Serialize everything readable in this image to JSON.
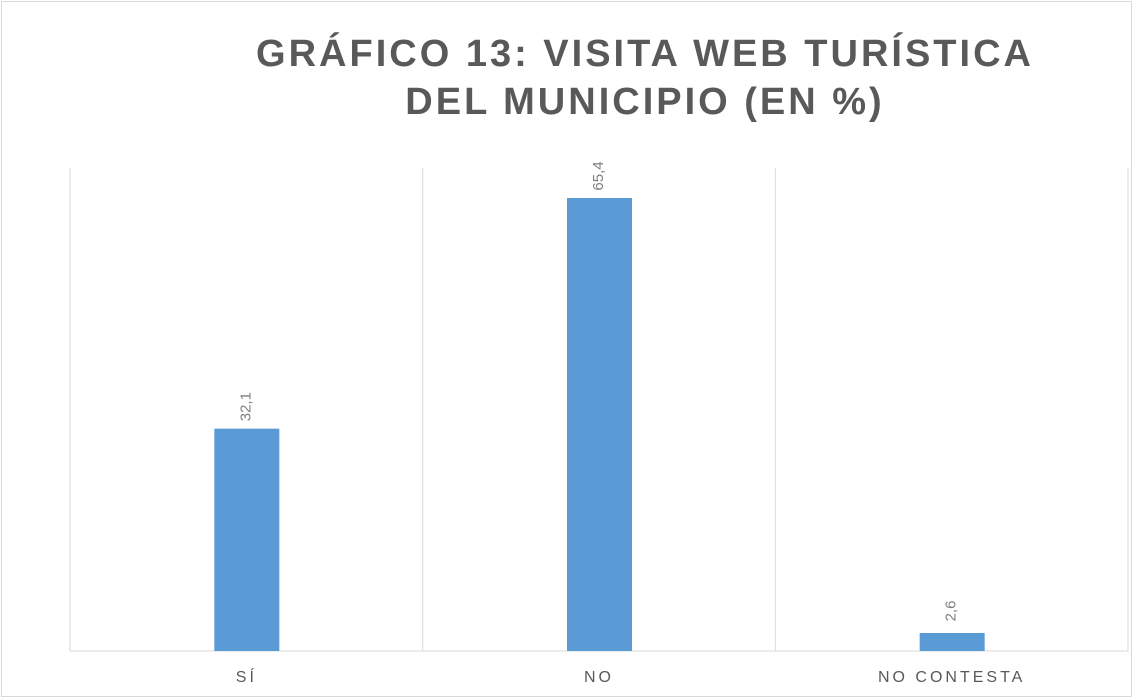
{
  "chart_data": {
    "type": "bar",
    "title": "GRÁFICO 13: VISITA WEB TURÍSTICA DEL MUNICIPIO (EN %)",
    "categories": [
      "SÍ",
      "NO",
      "NO CONTESTA"
    ],
    "values": [
      32.1,
      65.4,
      2.6
    ],
    "value_labels": [
      "32,1",
      "65,4",
      "2,6"
    ],
    "color": "#5b9bd5"
  }
}
